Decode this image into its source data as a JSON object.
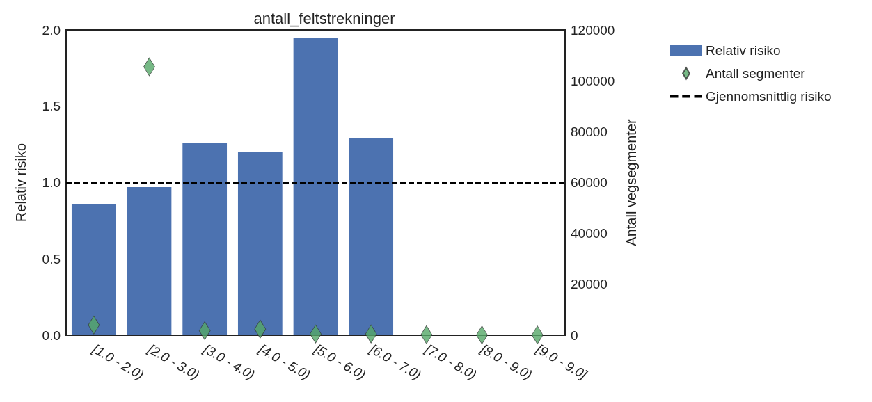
{
  "chart_data": {
    "type": "bar",
    "title": "antall_feltstrekninger",
    "categories": [
      "[1.0 - 2.0)",
      "[2.0 - 3.0)",
      "[3.0 - 4.0)",
      "[4.0 - 5.0)",
      "[5.0 - 6.0)",
      "[6.0 - 7.0)",
      "[7.0 - 8.0)",
      "[8.0 - 9.0)",
      "[9.0 - 9.0]"
    ],
    "series": [
      {
        "name": "Relativ risiko",
        "color": "#4c72b0",
        "values": [
          0.86,
          0.97,
          1.26,
          1.2,
          1.95,
          1.29,
          0,
          0,
          0
        ]
      },
      {
        "name": "Antall segmenter",
        "type": "scatter",
        "axis": "y2",
        "marker": "diamond",
        "color": "#55a868",
        "values": [
          4000,
          105500,
          1800,
          2400,
          500,
          500,
          200,
          100,
          100
        ]
      }
    ],
    "ylabel": "Relativ risiko",
    "y2label": "Antall vegsegmenter",
    "ylim": [
      0,
      2
    ],
    "yticks": [
      {
        "value": 0,
        "label": "0.0"
      },
      {
        "value": 0.5,
        "label": "0.5"
      },
      {
        "value": 1,
        "label": "1.0"
      },
      {
        "value": 1.5,
        "label": "1.5"
      },
      {
        "value": 2,
        "label": "2.0"
      }
    ],
    "y2lim": [
      0,
      120000
    ],
    "y2ticks": [
      0,
      20000,
      40000,
      60000,
      80000,
      100000,
      120000
    ],
    "ref_lines": [
      {
        "axis": "y",
        "value": 1,
        "label": "Gjennomsnittlig risiko",
        "color": "#000000",
        "line_style": "dashed"
      }
    ],
    "legend": "right",
    "grid": false
  }
}
